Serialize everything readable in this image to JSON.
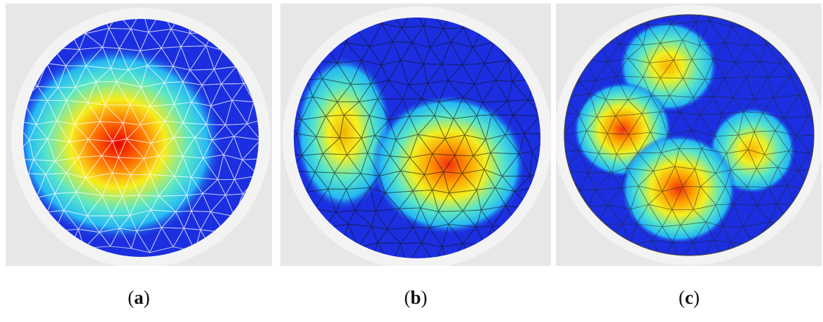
{
  "captions": [
    {
      "id": "a",
      "letter": "a"
    },
    {
      "id": "b",
      "letter": "b"
    },
    {
      "id": "c",
      "letter": "c"
    }
  ],
  "colors": {
    "background_plate": "#e7e7e7",
    "base_blue": "#1a2ee0",
    "cyan": "#2fd6f0",
    "yellow": "#f2f020",
    "red": "#ff2000"
  }
}
